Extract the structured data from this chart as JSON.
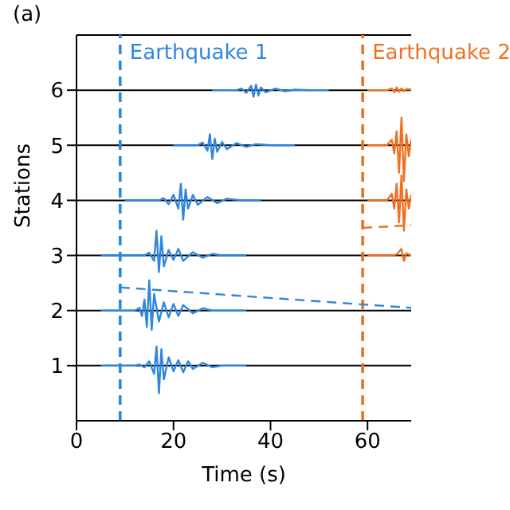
{
  "chart_data": {
    "type": "line",
    "xlabel": "Time (s)",
    "ylabel": "Stations",
    "annotations": [
      "(a)"
    ],
    "xlim": [
      0,
      69
    ],
    "xticks": [
      0,
      20,
      40,
      60
    ],
    "ylim": [
      0,
      7
    ],
    "yticks": [
      1,
      2,
      3,
      4,
      5,
      6
    ],
    "grid": "y",
    "ref_lines": [
      {
        "axis": "x",
        "value": 9,
        "label": "Earthquake 1",
        "color": "#2e86de",
        "line_style": "dashed"
      },
      {
        "axis": "x",
        "value": 59,
        "label": "Earthquake 2",
        "color": "#f07020",
        "line_style": "dashed"
      }
    ],
    "series": [
      {
        "color": "#2e86de",
        "x": [
          5,
          12,
          13,
          14,
          15,
          16,
          16.5,
          17,
          17.5,
          18,
          19,
          20,
          21,
          22,
          23,
          24,
          26,
          28,
          30,
          35
        ],
        "values": [
          1,
          1,
          1.02,
          0.97,
          1.08,
          0.85,
          1.35,
          0.5,
          1.3,
          0.75,
          1.15,
          0.9,
          1.1,
          0.88,
          1.08,
          0.94,
          1.05,
          0.97,
          1,
          1
        ]
      },
      {
        "color": "#2e86de",
        "x": [
          5,
          12,
          13,
          13.5,
          14,
          14.5,
          15,
          15.5,
          16,
          17,
          18,
          19,
          20,
          21,
          22,
          24,
          26,
          28,
          35
        ],
        "values": [
          2,
          2,
          2.05,
          1.9,
          2.2,
          1.7,
          2.55,
          1.65,
          2.3,
          1.8,
          2.15,
          1.88,
          2.12,
          1.9,
          2.1,
          1.95,
          2.04,
          2,
          2
        ]
      },
      {
        "color": "#2e86de",
        "x": [
          5,
          14,
          15,
          16,
          16.5,
          17,
          17.5,
          18,
          19,
          20,
          21,
          22,
          24,
          26,
          28,
          30,
          35
        ],
        "values": [
          3,
          3,
          3.05,
          2.9,
          3.45,
          2.7,
          3.35,
          2.8,
          3.1,
          2.92,
          3.12,
          2.9,
          3.06,
          2.96,
          3.03,
          3,
          3
        ]
      },
      {
        "color": "#2e86de",
        "x": [
          10,
          17,
          18,
          19,
          20,
          21,
          21.5,
          22,
          22.5,
          23,
          24,
          25,
          27,
          29,
          31,
          34,
          38
        ],
        "values": [
          4,
          4,
          4.04,
          3.93,
          4.1,
          3.85,
          4.3,
          3.65,
          4.2,
          3.85,
          4.1,
          3.92,
          4.06,
          3.95,
          4.03,
          4,
          4
        ]
      },
      {
        "color": "#2e86de",
        "x": [
          20,
          25,
          26,
          27,
          27.5,
          28,
          28.5,
          29,
          30,
          31,
          33,
          35,
          37,
          40,
          45
        ],
        "values": [
          5,
          5,
          5.05,
          4.9,
          5.2,
          4.75,
          5.12,
          4.88,
          5.06,
          4.93,
          5.04,
          4.97,
          5.02,
          5,
          5
        ]
      },
      {
        "color": "#2e86de",
        "x": [
          28,
          33,
          34,
          35,
          36,
          36.5,
          37,
          37.5,
          38,
          39,
          41,
          43,
          45,
          48,
          52
        ],
        "values": [
          6,
          6,
          6.03,
          5.95,
          6.08,
          5.88,
          6.1,
          5.9,
          6.05,
          5.96,
          6.03,
          5.98,
          6.01,
          6,
          6
        ]
      },
      {
        "color": "#f07020",
        "x": [
          60,
          65,
          66,
          67,
          67.5,
          68,
          69
        ],
        "values": [
          3,
          3,
          3.02,
          3.12,
          2.9,
          3.04,
          3
        ]
      },
      {
        "color": "#f07020",
        "x": [
          60,
          64,
          65,
          65.5,
          66,
          66.5,
          67,
          67.5,
          68,
          68.5,
          69
        ],
        "values": [
          4,
          4,
          4.12,
          3.85,
          4.3,
          3.6,
          4.45,
          3.45,
          4.2,
          3.85,
          4.1
        ]
      },
      {
        "color": "#f07020",
        "x": [
          60,
          64,
          65,
          65.5,
          66,
          66.5,
          67,
          67.5,
          68,
          68.5,
          69
        ],
        "values": [
          5,
          5,
          5.1,
          4.85,
          5.25,
          4.5,
          5.5,
          4.35,
          5.2,
          4.8,
          5.1
        ]
      },
      {
        "color": "#f07020",
        "x": [
          60,
          64,
          65,
          65.5,
          66,
          66.5,
          67,
          67.5,
          68,
          69
        ],
        "values": [
          6,
          6,
          6.03,
          5.96,
          6.05,
          5.97,
          6.03,
          5.98,
          6.02,
          6.01
        ]
      },
      {
        "color": "#2e86de",
        "line_style": "dashed",
        "x": [
          9,
          69
        ],
        "values": [
          2.42,
          2.05
        ]
      },
      {
        "color": "#f07020",
        "line_style": "dashed",
        "x": [
          59,
          69
        ],
        "values": [
          3.5,
          3.55
        ]
      }
    ]
  }
}
